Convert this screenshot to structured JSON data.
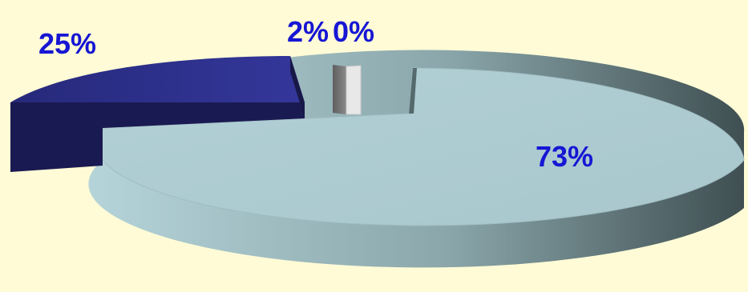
{
  "chart_data": {
    "type": "pie",
    "style": "3d-exploded",
    "slices": [
      {
        "label": "73%",
        "value": 73,
        "color": "#aecdd3"
      },
      {
        "label": "25%",
        "value": 25,
        "color": "#2e3192"
      },
      {
        "label": "2%",
        "value": 2,
        "color": "#808080"
      },
      {
        "label": "0%",
        "value": 0,
        "color": "#e8e8e8"
      }
    ],
    "label_color": "#1616d4",
    "background": "#fffbd6",
    "legend": "none",
    "title": ""
  }
}
